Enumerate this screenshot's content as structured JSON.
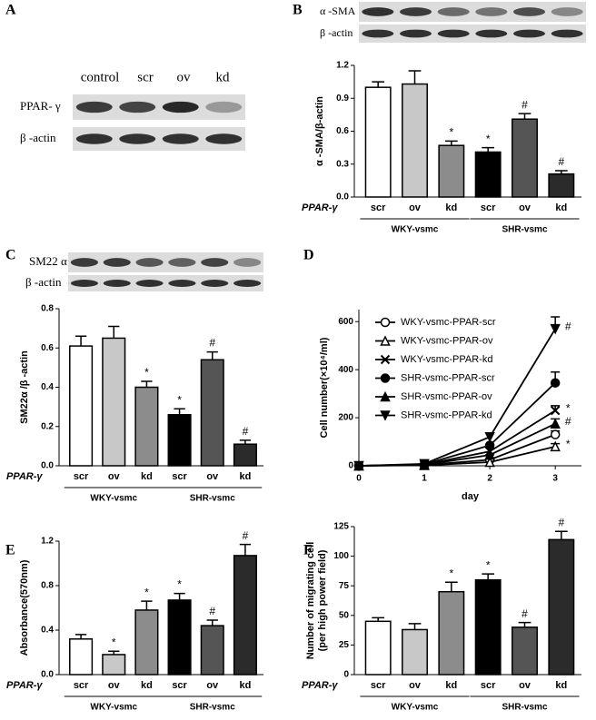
{
  "panels": [
    "A",
    "B",
    "C",
    "D",
    "E",
    "F"
  ],
  "blots": {
    "A": {
      "lanes": [
        "control",
        "scr",
        "ov",
        "kd"
      ],
      "rows": [
        "PPAR- γ",
        "β -actin"
      ]
    },
    "B": {
      "rows": [
        "α -SMA",
        "β -actin"
      ]
    },
    "C": {
      "rows": [
        "SM22 α",
        "β -actin"
      ]
    }
  },
  "chart_data": [
    {
      "type": "bar",
      "ylabel": "α -SMA/β-actin",
      "factor": "PPAR-γ",
      "categories": [
        "scr",
        "ov",
        "kd",
        "scr",
        "ov",
        "kd"
      ],
      "groups": [
        "WKY-vsmc",
        "SHR-vsmc"
      ],
      "values": [
        1.0,
        1.03,
        0.47,
        0.41,
        0.71,
        0.21
      ],
      "errors": [
        0.05,
        0.12,
        0.04,
        0.04,
        0.05,
        0.03
      ],
      "annotations": [
        null,
        null,
        "*",
        "*",
        "#",
        "#"
      ],
      "colors": [
        "#ffffff",
        "#c8c8c8",
        "#8c8c8c",
        "#000000",
        "#555555",
        "#2b2b2b"
      ],
      "ylim": [
        0,
        1.2
      ],
      "yticks": [
        {
          "value": 0,
          "label": "0.0"
        },
        0.3,
        0.6,
        0.9,
        1.2
      ]
    },
    {
      "type": "bar",
      "ylabel": "SM22α /β -actin",
      "factor": "PPAR-γ",
      "categories": [
        "scr",
        "ov",
        "kd",
        "scr",
        "ov",
        "kd"
      ],
      "groups": [
        "WKY-vsmc",
        "SHR-vsmc"
      ],
      "values": [
        0.61,
        0.65,
        0.4,
        0.26,
        0.54,
        0.11
      ],
      "errors": [
        0.05,
        0.06,
        0.03,
        0.03,
        0.04,
        0.02
      ],
      "annotations": [
        null,
        null,
        "*",
        "*",
        "#",
        "#"
      ],
      "colors": [
        "#ffffff",
        "#c8c8c8",
        "#8c8c8c",
        "#000000",
        "#555555",
        "#2b2b2b"
      ],
      "ylim": [
        0,
        0.8
      ],
      "yticks": [
        {
          "value": 0,
          "label": "0.0"
        },
        0.2,
        0.4,
        0.6,
        0.8
      ]
    },
    {
      "type": "line",
      "xlabel": "day",
      "ylabel": "Cell number(×10⁴/ml)",
      "x": [
        0,
        1,
        2,
        3
      ],
      "xlim": [
        0,
        3.4
      ],
      "xticks": [
        0,
        1,
        2,
        3
      ],
      "ylim": [
        0,
        650
      ],
      "yticks": [
        0,
        200,
        400,
        600
      ],
      "series": [
        {
          "name": "WKY-vsmc-PPAR-scr",
          "marker": "circle-open",
          "values": [
            0,
            3,
            25,
            130
          ],
          "errors": [
            null,
            null,
            null,
            15
          ],
          "annotations": [
            null,
            null,
            null,
            null
          ]
        },
        {
          "name": "WKY-vsmc-PPAR-ov",
          "marker": "triangle-open",
          "values": [
            0,
            2,
            15,
            80
          ],
          "errors": [
            null,
            null,
            null,
            12
          ],
          "annotations": [
            null,
            null,
            null,
            "*"
          ]
        },
        {
          "name": "WKY-vsmc-PPAR-kd",
          "marker": "x",
          "values": [
            0,
            5,
            60,
            230
          ],
          "errors": [
            null,
            null,
            null,
            20
          ],
          "annotations": [
            null,
            null,
            null,
            "*"
          ]
        },
        {
          "name": "SHR-vsmc-PPAR-scr",
          "marker": "circle",
          "values": [
            0,
            6,
            85,
            345
          ],
          "errors": [
            null,
            null,
            null,
            45
          ],
          "annotations": [
            null,
            null,
            null,
            null
          ]
        },
        {
          "name": "SHR-vsmc-PPAR-ov",
          "marker": "triangle",
          "values": [
            0,
            4,
            45,
            175
          ],
          "errors": [
            null,
            null,
            null,
            20
          ],
          "annotations": [
            null,
            null,
            null,
            "#"
          ]
        },
        {
          "name": "SHR-vsmc-PPAR-kd",
          "marker": "triangle-down",
          "values": [
            0,
            8,
            120,
            570
          ],
          "errors": [
            null,
            null,
            null,
            50
          ],
          "annotations": [
            null,
            null,
            null,
            "#"
          ]
        }
      ]
    },
    {
      "type": "bar",
      "ylabel": "Absorbance(570nm)",
      "factor": "PPAR-γ",
      "categories": [
        "scr",
        "ov",
        "kd",
        "scr",
        "ov",
        "kd"
      ],
      "groups": [
        "WKY-vsmc",
        "SHR-vsmc"
      ],
      "values": [
        0.32,
        0.18,
        0.58,
        0.67,
        0.44,
        1.07
      ],
      "errors": [
        0.04,
        0.03,
        0.08,
        0.06,
        0.05,
        0.1
      ],
      "annotations": [
        null,
        "*",
        "*",
        "*",
        "#",
        "#"
      ],
      "colors": [
        "#ffffff",
        "#c8c8c8",
        "#8c8c8c",
        "#000000",
        "#555555",
        "#2b2b2b"
      ],
      "ylim": [
        0,
        1.2
      ],
      "yticks": [
        {
          "value": 0,
          "label": "0.0"
        },
        0.4,
        0.8,
        1.2
      ]
    },
    {
      "type": "bar",
      "ylabel": [
        "Number of migrating cell",
        "(per high power field)"
      ],
      "factor": "PPAR-γ",
      "categories": [
        "scr",
        "ov",
        "kd",
        "scr",
        "ov",
        "kd"
      ],
      "groups": [
        "WKY-vsmc",
        "SHR-vsmc"
      ],
      "values": [
        45,
        38,
        70,
        80,
        40,
        114
      ],
      "errors": [
        3,
        5,
        8,
        5,
        4,
        7
      ],
      "annotations": [
        null,
        null,
        "*",
        "*",
        "#",
        "#"
      ],
      "colors": [
        "#ffffff",
        "#c8c8c8",
        "#8c8c8c",
        "#000000",
        "#555555",
        "#2b2b2b"
      ],
      "ylim": [
        0,
        125
      ],
      "yticks": [
        0,
        25,
        50,
        75,
        100,
        125
      ]
    }
  ]
}
